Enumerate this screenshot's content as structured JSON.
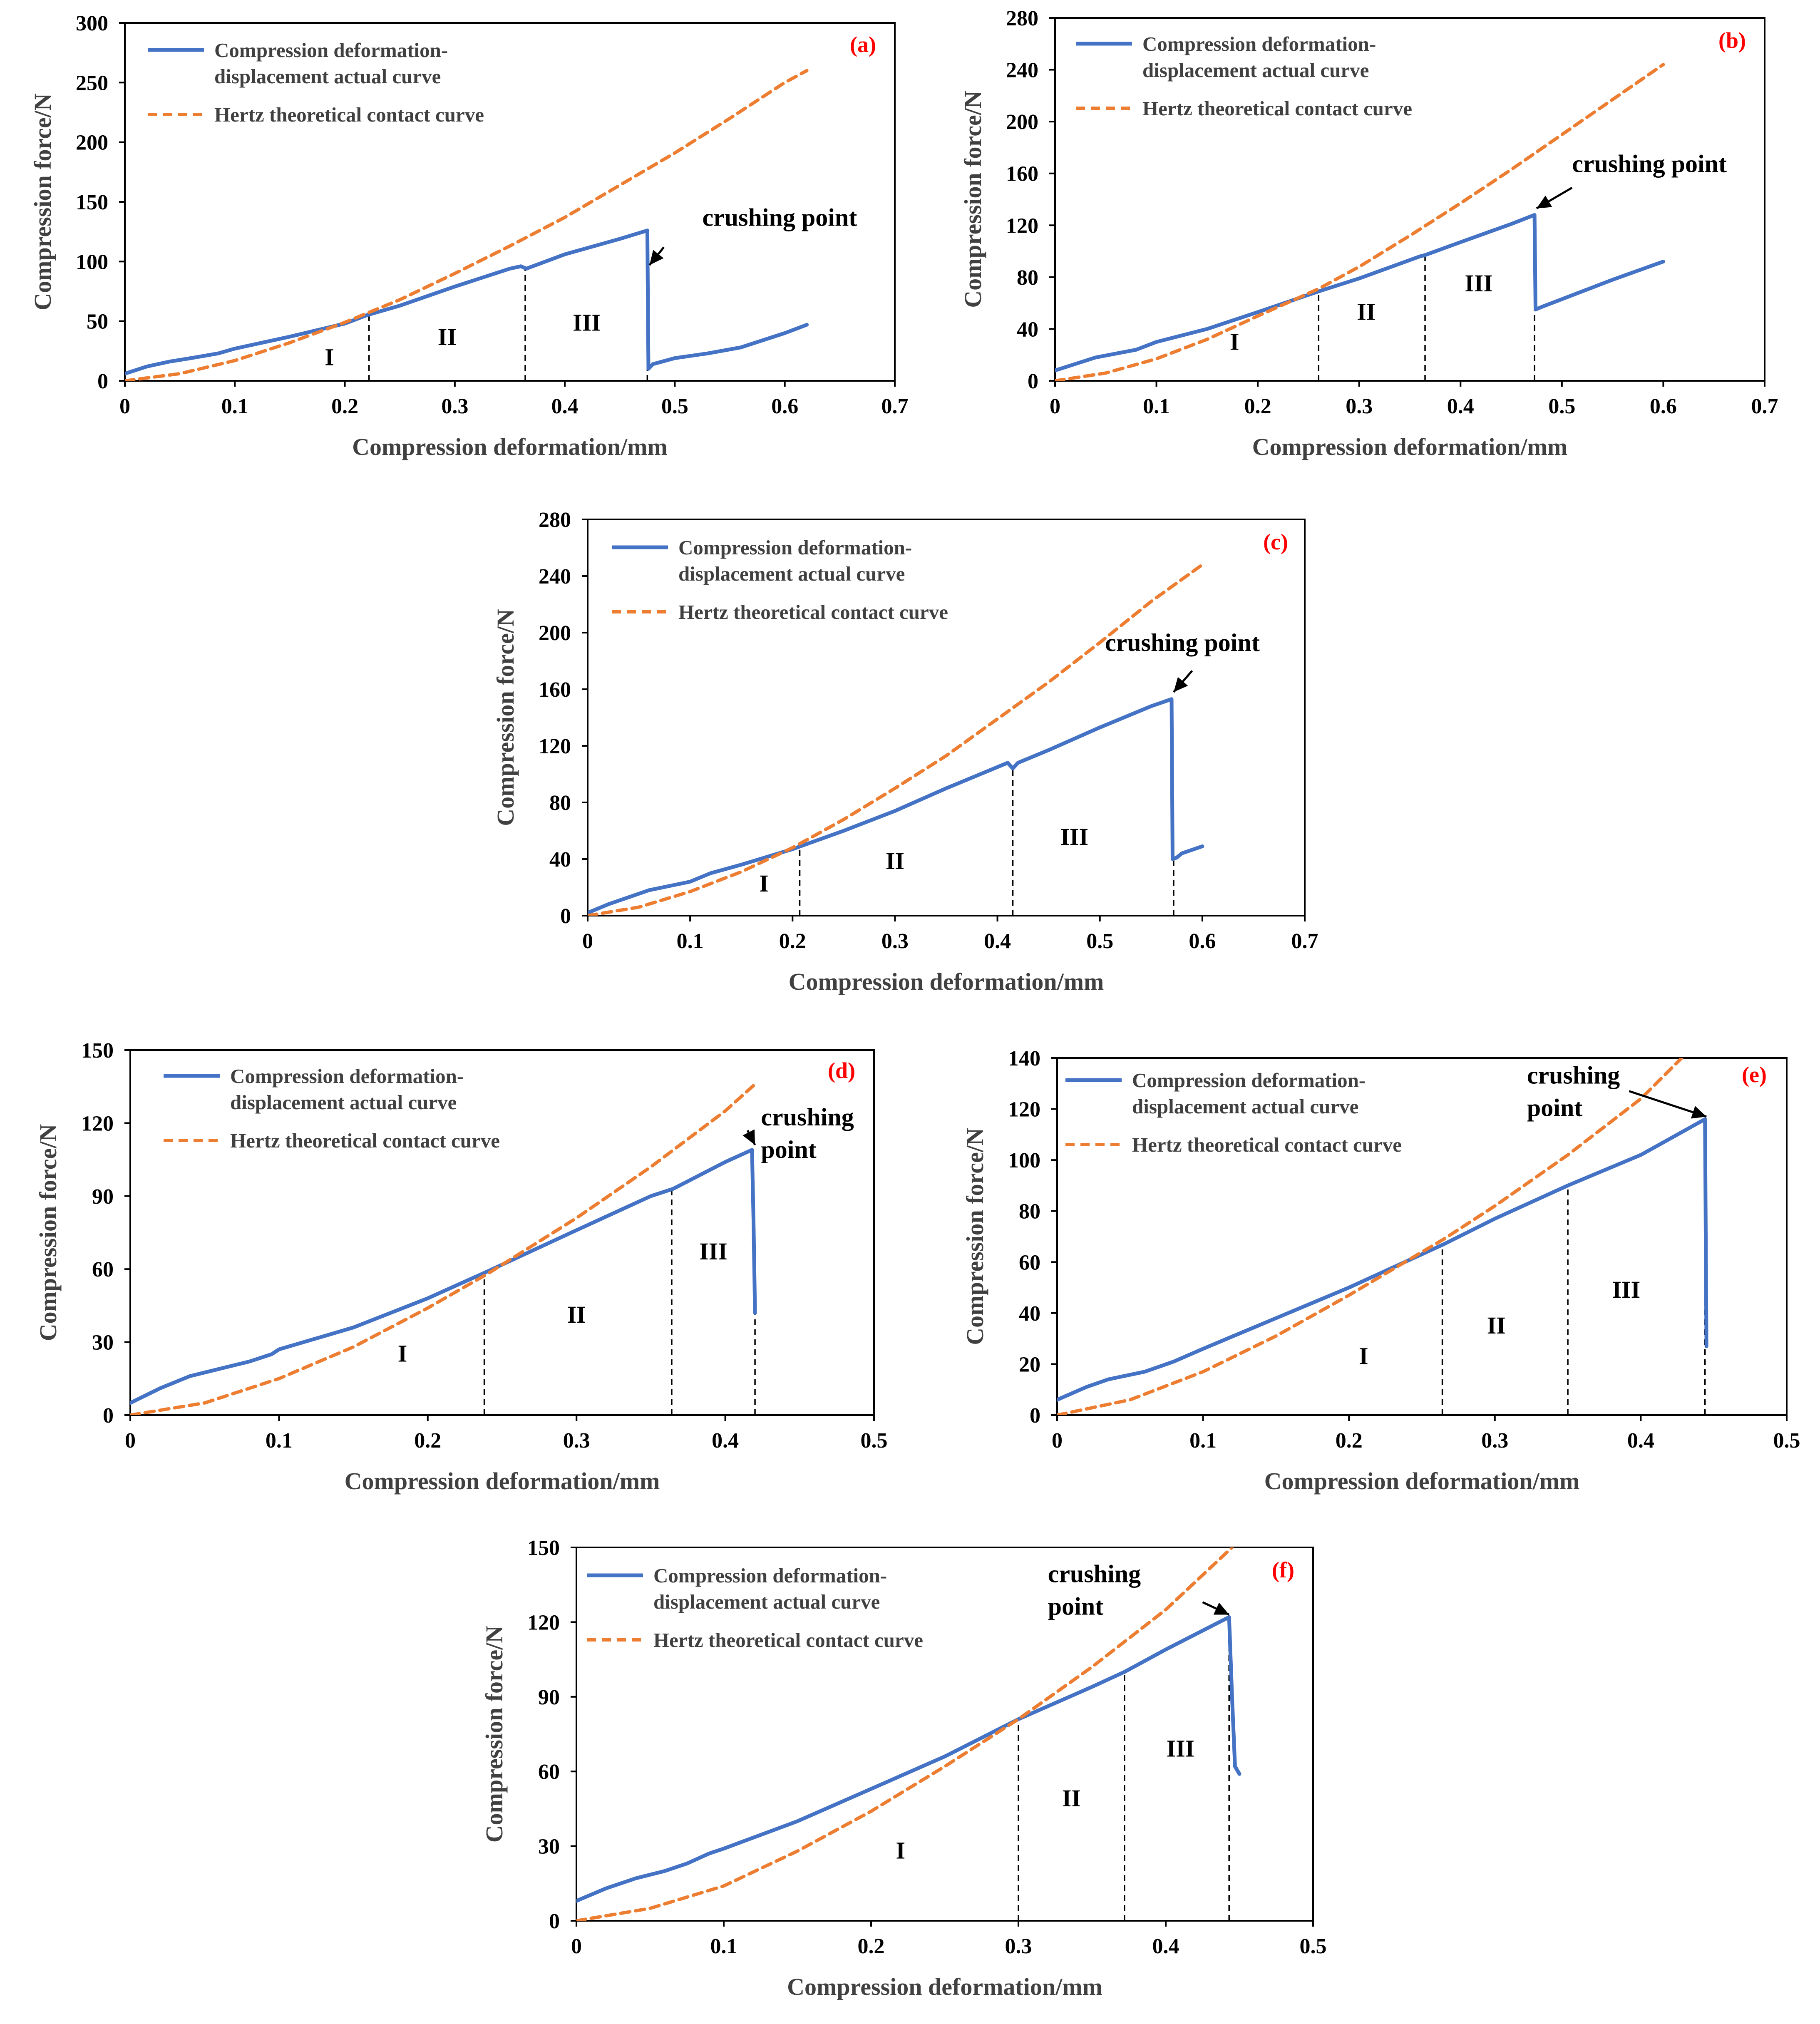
{
  "colors": {
    "actual": "#4472c4",
    "hertz": "#ed7d31",
    "panel_label": "#ff0000"
  },
  "legend": {
    "actual_line1": "Compression deformation-",
    "actual_line2": "displacement actual curve",
    "hertz": "Hertz theoretical contact curve"
  },
  "chart_data": [
    {
      "panel": "(a)",
      "type": "line",
      "xlabel": "Compression deformation/mm",
      "ylabel": "Compression force/N",
      "xlim": [
        0,
        0.7
      ],
      "ylim": [
        0,
        300
      ],
      "xticks": [
        0,
        0.1,
        0.2,
        0.3,
        0.4,
        0.5,
        0.6,
        0.7
      ],
      "yticks": [
        0,
        50,
        100,
        150,
        200,
        250,
        300
      ],
      "xtick_labels": [
        "0",
        "0.1",
        "0.2",
        "0.3",
        "0.4",
        "0.5",
        "0.6",
        "0.7"
      ],
      "ytick_labels": [
        "0",
        "50",
        "100",
        "150",
        "200",
        "250",
        "300"
      ],
      "legend_position": "top-left",
      "series": [
        {
          "name": "Compression deformation-displacement actual curve",
          "style": "solid",
          "x": [
            0,
            0.02,
            0.04,
            0.06,
            0.085,
            0.1,
            0.15,
            0.2,
            0.22,
            0.25,
            0.3,
            0.35,
            0.36,
            0.365,
            0.4,
            0.45,
            0.475,
            0.476,
            0.48,
            0.5,
            0.53,
            0.56,
            0.6,
            0.62
          ],
          "y": [
            6,
            12,
            16,
            19,
            23,
            27,
            37,
            48,
            55,
            63,
            79,
            94,
            96,
            94,
            106,
            119,
            126,
            10,
            14,
            19,
            23,
            28,
            40,
            47
          ]
        },
        {
          "name": "Hertz theoretical contact curve",
          "style": "dashed",
          "x": [
            0,
            0.05,
            0.1,
            0.15,
            0.2,
            0.25,
            0.3,
            0.35,
            0.4,
            0.45,
            0.5,
            0.55,
            0.6,
            0.62
          ],
          "y": [
            0,
            6,
            17,
            32,
            49,
            68,
            90,
            113,
            137,
            164,
            191,
            220,
            250,
            260
          ]
        }
      ],
      "dividers": [
        0.222,
        0.364,
        0.475
      ],
      "regions": [
        {
          "label": "I",
          "x": 0.186,
          "y": 13
        },
        {
          "label": "II",
          "x": 0.293,
          "y": 30
        },
        {
          "label": "III",
          "x": 0.42,
          "y": 42
        }
      ],
      "annotation": {
        "lines": [
          "crushing point"
        ],
        "text_x": 0.525,
        "text_y": 130,
        "arrow_from": [
          0.49,
          112
        ],
        "arrow_to": [
          0.477,
          97
        ]
      }
    },
    {
      "panel": "(b)",
      "type": "line",
      "xlabel": "Compression deformation/mm",
      "ylabel": "Compression force/N",
      "xlim": [
        0,
        0.7
      ],
      "ylim": [
        0,
        280
      ],
      "xticks": [
        0,
        0.1,
        0.2,
        0.3,
        0.4,
        0.5,
        0.6,
        0.7
      ],
      "yticks": [
        0,
        40,
        80,
        120,
        160,
        200,
        240,
        280
      ],
      "xtick_labels": [
        "0",
        "0.1",
        "0.2",
        "0.3",
        "0.4",
        "0.5",
        "0.6",
        "0.7"
      ],
      "ytick_labels": [
        "0",
        "40",
        "80",
        "120",
        "160",
        "200",
        "240",
        "280"
      ],
      "legend_position": "top-left",
      "series": [
        {
          "name": "Compression deformation-displacement actual curve",
          "style": "solid",
          "x": [
            0,
            0.02,
            0.04,
            0.06,
            0.08,
            0.1,
            0.15,
            0.2,
            0.26,
            0.3,
            0.36,
            0.365,
            0.4,
            0.45,
            0.473,
            0.474,
            0.48,
            0.5,
            0.55,
            0.6
          ],
          "y": [
            8,
            13,
            18,
            21,
            24,
            30,
            40,
            53,
            69,
            79,
            96,
            97,
            107,
            121,
            128,
            55,
            57,
            63,
            78,
            92
          ]
        },
        {
          "name": "Hertz theoretical contact curve",
          "style": "dashed",
          "x": [
            0,
            0.05,
            0.1,
            0.15,
            0.2,
            0.26,
            0.3,
            0.35,
            0.4,
            0.45,
            0.5,
            0.55,
            0.6
          ],
          "y": [
            0,
            6,
            17,
            32,
            50,
            71,
            88,
            112,
            137,
            163,
            190,
            217,
            244
          ]
        }
      ],
      "dividers": [
        0.26,
        0.365,
        0.473
      ],
      "regions": [
        {
          "label": "I",
          "x": 0.177,
          "y": 24
        },
        {
          "label": "II",
          "x": 0.307,
          "y": 47
        },
        {
          "label": "III",
          "x": 0.418,
          "y": 69
        }
      ],
      "annotation": {
        "lines": [
          "crushing point"
        ],
        "text_x": 0.51,
        "text_y": 161,
        "arrow_from": [
          0.51,
          149
        ],
        "arrow_to": [
          0.475,
          133
        ]
      }
    },
    {
      "panel": "(c)",
      "type": "line",
      "xlabel": "Compression deformation/mm",
      "ylabel": "Compression force/N",
      "xlim": [
        0,
        0.7
      ],
      "ylim": [
        0,
        280
      ],
      "xticks": [
        0,
        0.1,
        0.2,
        0.3,
        0.4,
        0.5,
        0.6,
        0.7
      ],
      "yticks": [
        0,
        40,
        80,
        120,
        160,
        200,
        240,
        280
      ],
      "xtick_labels": [
        "0",
        "0.1",
        "0.2",
        "0.3",
        "0.4",
        "0.5",
        "0.6",
        "0.7"
      ],
      "ytick_labels": [
        "0",
        "40",
        "80",
        "120",
        "160",
        "200",
        "240",
        "280"
      ],
      "legend_position": "top-left",
      "series": [
        {
          "name": "Compression deformation-displacement actual curve",
          "style": "solid",
          "x": [
            0,
            0.02,
            0.04,
            0.06,
            0.08,
            0.1,
            0.12,
            0.15,
            0.2,
            0.25,
            0.3,
            0.35,
            0.41,
            0.415,
            0.42,
            0.45,
            0.5,
            0.55,
            0.57,
            0.571,
            0.575,
            0.58,
            0.6
          ],
          "y": [
            2,
            8,
            13,
            18,
            21,
            24,
            30,
            36,
            47,
            60,
            74,
            90,
            108,
            104,
            108,
            117,
            133,
            148,
            153,
            40,
            41,
            44,
            49
          ]
        },
        {
          "name": "Hertz theoretical contact curve",
          "style": "dashed",
          "x": [
            0,
            0.05,
            0.1,
            0.15,
            0.2,
            0.25,
            0.3,
            0.35,
            0.4,
            0.45,
            0.5,
            0.55,
            0.6
          ],
          "y": [
            0,
            6,
            17,
            31,
            48,
            68,
            90,
            113,
            139,
            165,
            193,
            222,
            248
          ]
        }
      ],
      "dividers": [
        0.207,
        0.415,
        0.572
      ],
      "regions": [
        {
          "label": "I",
          "x": 0.172,
          "y": 17
        },
        {
          "label": "II",
          "x": 0.3,
          "y": 33
        },
        {
          "label": "III",
          "x": 0.475,
          "y": 50
        }
      ],
      "annotation": {
        "lines": [
          "crushing point"
        ],
        "text_x": 0.505,
        "text_y": 187,
        "arrow_from": [
          0.59,
          173
        ],
        "arrow_to": [
          0.572,
          158
        ]
      }
    },
    {
      "panel": "(d)",
      "type": "line",
      "xlabel": "Compression deformation/mm",
      "ylabel": "Compression force/N",
      "xlim": [
        0,
        0.5
      ],
      "ylim": [
        0,
        150
      ],
      "xticks": [
        0,
        0.1,
        0.2,
        0.3,
        0.4,
        0.5
      ],
      "yticks": [
        0,
        30,
        60,
        90,
        120,
        150
      ],
      "xtick_labels": [
        "0",
        "0.1",
        "0.2",
        "0.3",
        "0.4",
        "0.5"
      ],
      "ytick_labels": [
        "0",
        "30",
        "60",
        "90",
        "120",
        "150"
      ],
      "legend_position": "top-left",
      "series": [
        {
          "name": "Compression deformation-displacement actual curve",
          "style": "solid",
          "x": [
            0,
            0.02,
            0.04,
            0.06,
            0.08,
            0.095,
            0.1,
            0.15,
            0.2,
            0.24,
            0.3,
            0.35,
            0.365,
            0.4,
            0.418,
            0.419,
            0.42
          ],
          "y": [
            5,
            11,
            16,
            19,
            22,
            25,
            27,
            36,
            48,
            59,
            76,
            90,
            93,
            104,
            109,
            80,
            42
          ]
        },
        {
          "name": "Hertz theoretical contact curve",
          "style": "dashed",
          "x": [
            0,
            0.05,
            0.1,
            0.15,
            0.2,
            0.24,
            0.3,
            0.35,
            0.4,
            0.42
          ],
          "y": [
            0,
            5,
            15,
            28,
            44,
            58,
            81,
            102,
            125,
            136
          ]
        }
      ],
      "dividers": [
        0.238,
        0.364,
        0.42
      ],
      "regions": [
        {
          "label": "I",
          "x": 0.183,
          "y": 22
        },
        {
          "label": "II",
          "x": 0.3,
          "y": 38
        },
        {
          "label": "III",
          "x": 0.392,
          "y": 64
        }
      ],
      "annotation": {
        "lines": [
          "crushing",
          "point"
        ],
        "text_x": 0.424,
        "text_y": 119,
        "arrow_from": [
          0.415,
          117
        ],
        "arrow_to": [
          0.42,
          111
        ]
      }
    },
    {
      "panel": "(e)",
      "type": "line",
      "xlabel": "Compression deformation/mm",
      "ylabel": "Compression force/N",
      "xlim": [
        0,
        0.5
      ],
      "ylim": [
        0,
        140
      ],
      "xticks": [
        0,
        0.1,
        0.2,
        0.3,
        0.4,
        0.5
      ],
      "yticks": [
        0,
        20,
        40,
        60,
        80,
        100,
        120,
        140
      ],
      "xtick_labels": [
        "0",
        "0.1",
        "0.2",
        "0.3",
        "0.4",
        "0.5"
      ],
      "ytick_labels": [
        "0",
        "20",
        "40",
        "60",
        "80",
        "100",
        "120",
        "140"
      ],
      "legend_position": "top-left",
      "series": [
        {
          "name": "Compression deformation-displacement actual curve",
          "style": "solid",
          "x": [
            0,
            0.02,
            0.035,
            0.06,
            0.08,
            0.1,
            0.15,
            0.2,
            0.265,
            0.3,
            0.35,
            0.4,
            0.444,
            0.445
          ],
          "y": [
            6,
            11,
            14,
            17,
            21,
            26,
            38,
            50,
            67,
            77,
            90,
            102,
            116,
            27
          ]
        },
        {
          "name": "Hertz theoretical contact curve",
          "style": "dashed",
          "x": [
            0,
            0.05,
            0.1,
            0.15,
            0.2,
            0.265,
            0.3,
            0.35,
            0.4,
            0.428
          ],
          "y": [
            0,
            6,
            17,
            31,
            47,
            69,
            82,
            102,
            124,
            140
          ]
        }
      ],
      "dividers": [
        0.264,
        0.35,
        0.444
      ],
      "regions": [
        {
          "label": "I",
          "x": 0.21,
          "y": 20
        },
        {
          "label": "II",
          "x": 0.301,
          "y": 32
        },
        {
          "label": "III",
          "x": 0.39,
          "y": 46
        }
      ],
      "annotation": {
        "lines": [
          "crushing",
          "point"
        ],
        "text_x": 0.322,
        "text_y": 130,
        "arrow_from": [
          0.392,
          127
        ],
        "arrow_to": [
          0.445,
          117
        ]
      }
    },
    {
      "panel": "(f)",
      "type": "line",
      "xlabel": "Compression deformation/mm",
      "ylabel": "Compression force/N",
      "xlim": [
        0,
        0.5
      ],
      "ylim": [
        0,
        150
      ],
      "xticks": [
        0,
        0.1,
        0.2,
        0.3,
        0.4,
        0.5
      ],
      "yticks": [
        0,
        30,
        60,
        90,
        120,
        150
      ],
      "xtick_labels": [
        "0",
        "0.1",
        "0.2",
        "0.3",
        "0.4",
        "0.5"
      ],
      "ytick_labels": [
        "0",
        "30",
        "60",
        "90",
        "120",
        "150"
      ],
      "legend_position": "top-left",
      "series": [
        {
          "name": "Compression deformation-displacement actual curve",
          "style": "solid",
          "x": [
            0,
            0.02,
            0.04,
            0.06,
            0.075,
            0.09,
            0.1,
            0.15,
            0.2,
            0.25,
            0.3,
            0.35,
            0.372,
            0.4,
            0.443,
            0.445,
            0.447,
            0.45
          ],
          "y": [
            8,
            13,
            17,
            20,
            23,
            27,
            29,
            40,
            53,
            66,
            81,
            94,
            100,
            109,
            122,
            90,
            62,
            59
          ]
        },
        {
          "name": "Hertz theoretical contact curve",
          "style": "dashed",
          "x": [
            0,
            0.05,
            0.1,
            0.15,
            0.2,
            0.25,
            0.3,
            0.35,
            0.4,
            0.445
          ],
          "y": [
            0,
            5,
            14,
            28,
            44,
            62,
            81,
            102,
            125,
            150
          ]
        }
      ],
      "dividers": [
        0.3,
        0.372,
        0.443
      ],
      "regions": [
        {
          "label": "I",
          "x": 0.22,
          "y": 25
        },
        {
          "label": "II",
          "x": 0.336,
          "y": 46
        },
        {
          "label": "III",
          "x": 0.41,
          "y": 66
        }
      ],
      "annotation": {
        "lines": [
          "crushing",
          "point"
        ],
        "text_x": 0.32,
        "text_y": 136,
        "arrow_from": [
          0.425,
          128
        ],
        "arrow_to": [
          0.443,
          123
        ]
      }
    }
  ]
}
